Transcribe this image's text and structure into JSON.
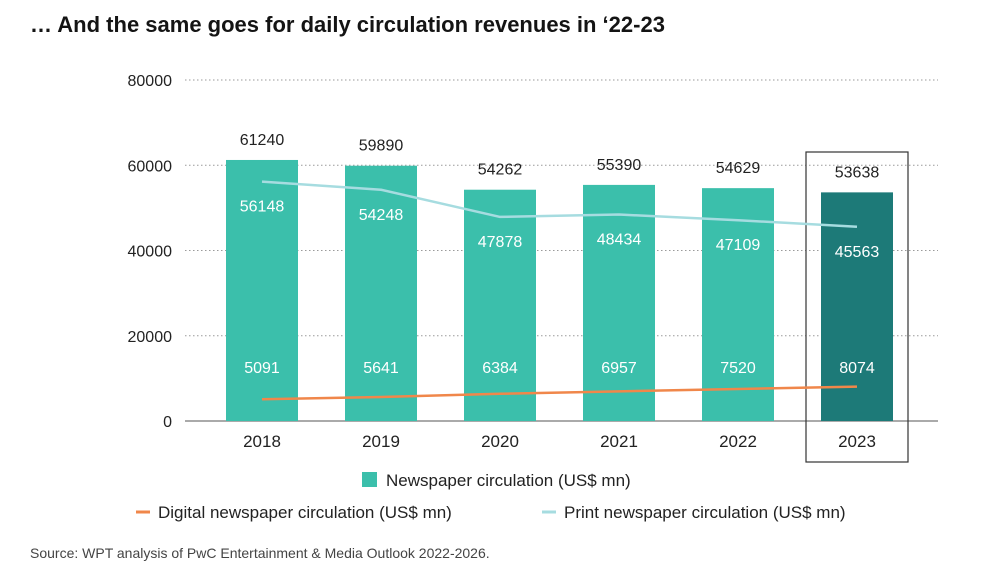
{
  "title": "… And the same goes for daily circulation revenues in ‘22-23",
  "source": "Source: WPT analysis of PwC Entertainment & Media Outlook 2022-2026.",
  "colors": {
    "bar": "#3bbfab",
    "bar_highlight": "#1d7a78",
    "digital": "#f0874a",
    "print": "#a6dce0",
    "grid": "#9a9a9a",
    "highlight_box": "#333333"
  },
  "chart_data": {
    "type": "bar",
    "categories": [
      "2018",
      "2019",
      "2020",
      "2021",
      "2022",
      "2023"
    ],
    "ylim": [
      0,
      80000
    ],
    "yticks": [
      "0",
      "20000",
      "40000",
      "60000",
      "80000"
    ],
    "grid": "horizontal dotted",
    "highlight_category": "2023",
    "series": [
      {
        "name": "Newspaper circulation (US$ mn)",
        "kind": "bar",
        "values": [
          61240,
          59890,
          54262,
          55390,
          54629,
          53638
        ]
      },
      {
        "name": "Digital newspaper circulation (US$ mn)",
        "kind": "line",
        "values": [
          5091,
          5641,
          6384,
          6957,
          7520,
          8074
        ]
      },
      {
        "name": "Print newspaper circulation (US$ mn)",
        "kind": "line",
        "values": [
          56148,
          54248,
          47878,
          48434,
          47109,
          45563
        ]
      }
    ],
    "legend_position": "bottom"
  }
}
